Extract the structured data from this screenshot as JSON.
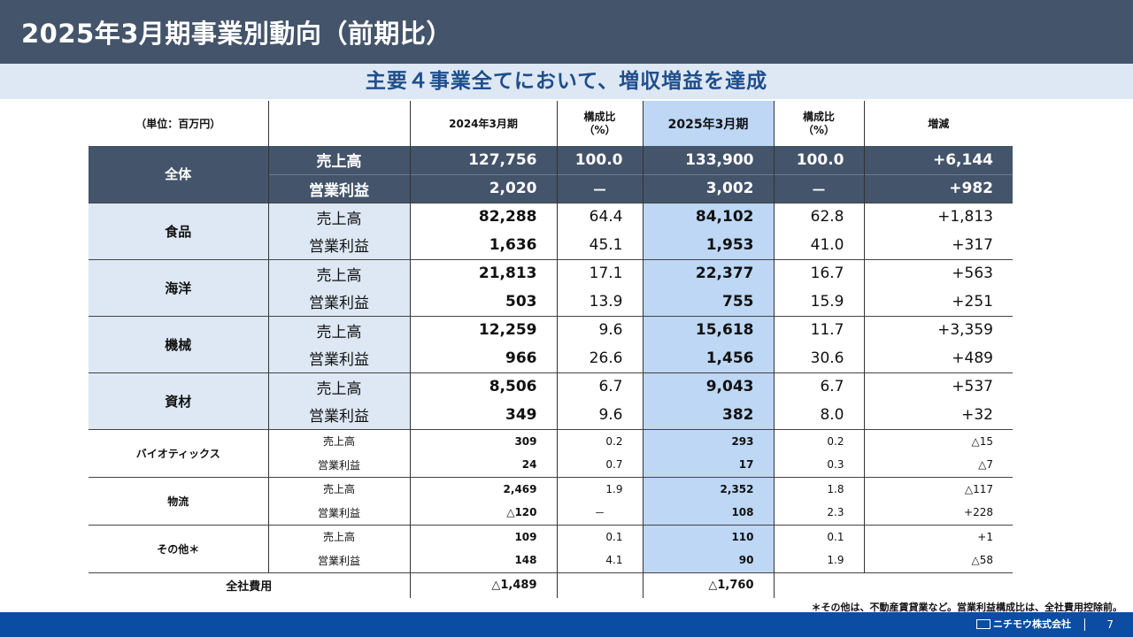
{
  "header": {
    "title": "2025年3月期事業別動向（前期比）"
  },
  "subtitle": "主要４事業全てにおいて、増収増益を達成",
  "table": {
    "unit_label": "（単位：百万円）",
    "columns": {
      "fy2024": "2024年3月期",
      "ratio1_line1": "構成比",
      "ratio1_line2": "（%）",
      "fy2025": "2025年3月期",
      "ratio2_line1": "構成比",
      "ratio2_line2": "（%）",
      "change": "増減"
    },
    "sales_label": "売上高",
    "profit_label": "営業利益",
    "segments": [
      {
        "name": "全体",
        "sales": {
          "fy2024": "127,756",
          "r1": "100.0",
          "fy2025": "133,900",
          "r2": "100.0",
          "diff": "+6,144"
        },
        "profit": {
          "fy2024": "2,020",
          "r1": "－",
          "fy2025": "3,002",
          "r2": "－",
          "diff": "+982"
        }
      },
      {
        "name": "食品",
        "sales": {
          "fy2024": "82,288",
          "r1": "64.4",
          "fy2025": "84,102",
          "r2": "62.8",
          "diff": "+1,813"
        },
        "profit": {
          "fy2024": "1,636",
          "r1": "45.1",
          "fy2025": "1,953",
          "r2": "41.0",
          "diff": "+317"
        }
      },
      {
        "name": "海洋",
        "sales": {
          "fy2024": "21,813",
          "r1": "17.1",
          "fy2025": "22,377",
          "r2": "16.7",
          "diff": "+563"
        },
        "profit": {
          "fy2024": "503",
          "r1": "13.9",
          "fy2025": "755",
          "r2": "15.9",
          "diff": "+251"
        }
      },
      {
        "name": "機械",
        "sales": {
          "fy2024": "12,259",
          "r1": "9.6",
          "fy2025": "15,618",
          "r2": "11.7",
          "diff": "+3,359"
        },
        "profit": {
          "fy2024": "966",
          "r1": "26.6",
          "fy2025": "1,456",
          "r2": "30.6",
          "diff": "+489"
        }
      },
      {
        "name": "資材",
        "sales": {
          "fy2024": "8,506",
          "r1": "6.7",
          "fy2025": "9,043",
          "r2": "6.7",
          "diff": "+537"
        },
        "profit": {
          "fy2024": "349",
          "r1": "9.6",
          "fy2025": "382",
          "r2": "8.0",
          "diff": "+32"
        }
      },
      {
        "name": "バイオティックス",
        "sales": {
          "fy2024": "309",
          "r1": "0.2",
          "fy2025": "293",
          "r2": "0.2",
          "diff": "△15"
        },
        "profit": {
          "fy2024": "24",
          "r1": "0.7",
          "fy2025": "17",
          "r2": "0.3",
          "diff": "△7"
        }
      },
      {
        "name": "物流",
        "sales": {
          "fy2024": "2,469",
          "r1": "1.9",
          "fy2025": "2,352",
          "r2": "1.8",
          "diff": "△117"
        },
        "profit": {
          "fy2024": "△120",
          "r1": "－",
          "fy2025": "108",
          "r2": "2.3",
          "diff": "+228"
        }
      },
      {
        "name": "その他＊",
        "sales": {
          "fy2024": "109",
          "r1": "0.1",
          "fy2025": "110",
          "r2": "0.1",
          "diff": "+1"
        },
        "profit": {
          "fy2024": "148",
          "r1": "4.1",
          "fy2025": "90",
          "r2": "1.9",
          "diff": "△58"
        }
      }
    ],
    "corporate": {
      "label": "全社費用",
      "fy2024": "△1,489",
      "fy2025": "△1,760"
    }
  },
  "note": "＊その他は、不動産賃貸業など。営業利益構成比は、全社費用控除前。",
  "footer": {
    "company": "ニチモウ株式会社",
    "page": "7"
  }
}
